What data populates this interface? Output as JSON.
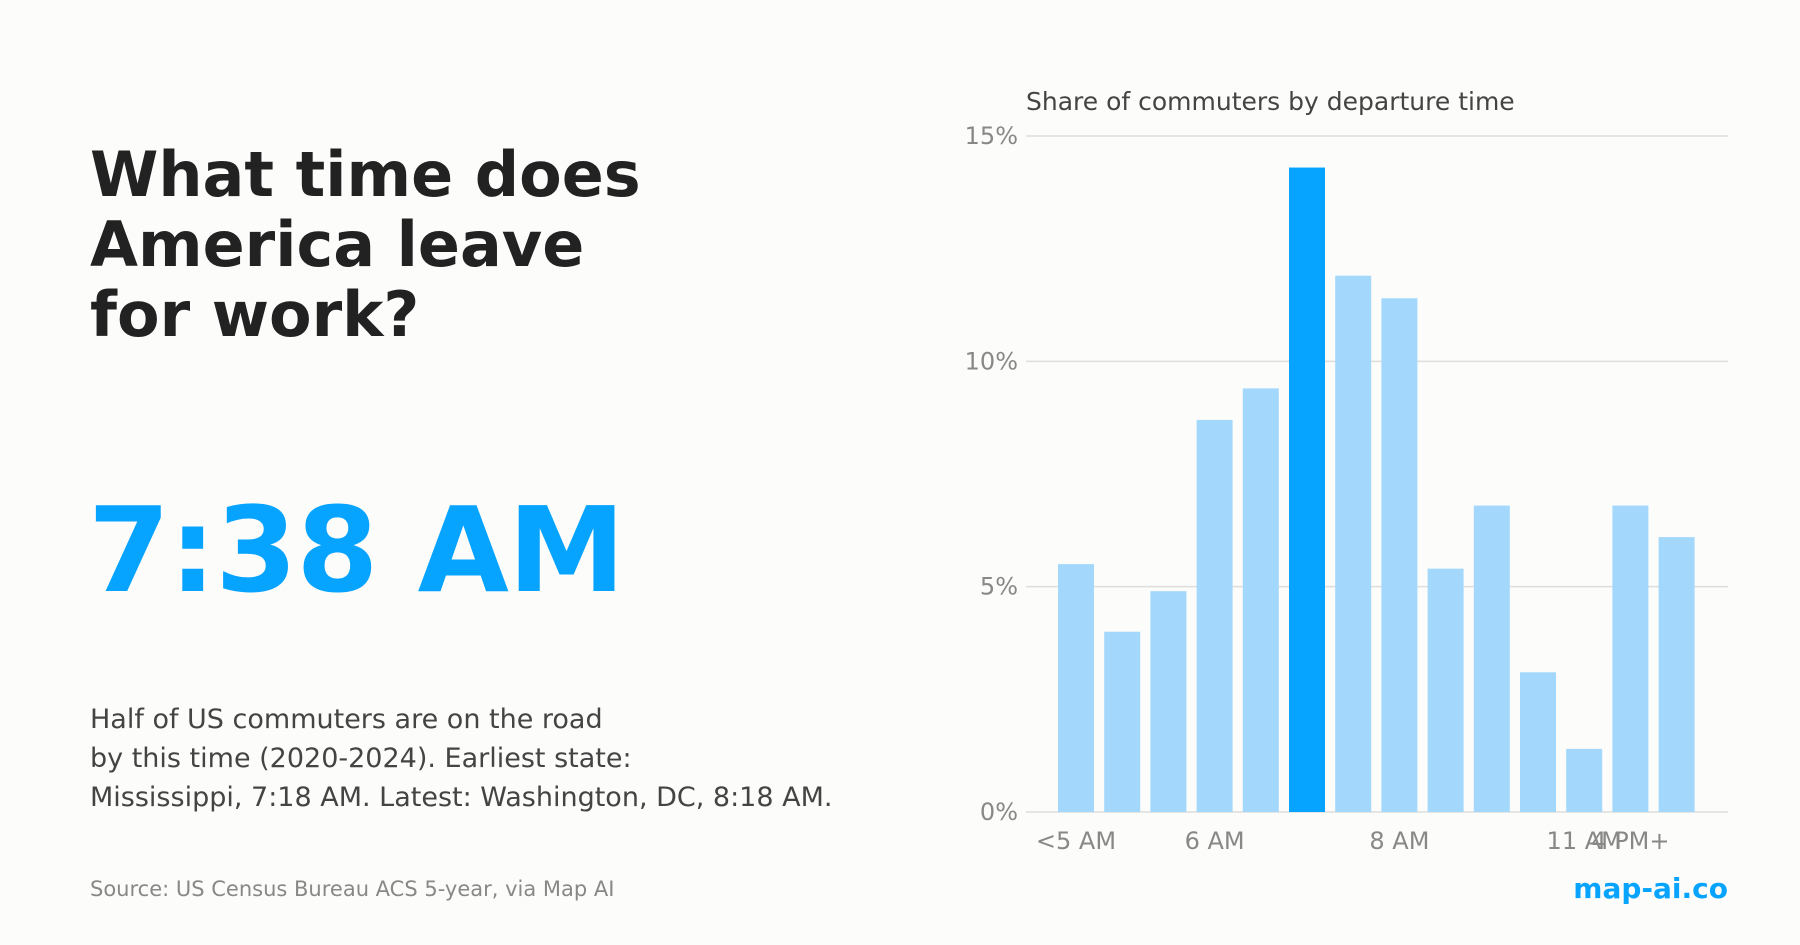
{
  "headline": {
    "lines": [
      "What time does",
      "America leave",
      "for work?"
    ]
  },
  "median_time": "7:38 AM",
  "description": {
    "lines": [
      "Half of US commuters are on the road",
      "by this time (2020-2024). Earliest state:",
      "Mississippi, 7:18 AM. Latest: Washington, DC, 8:18 AM."
    ]
  },
  "source": "Source: US Census Bureau ACS 5-year, via Map AI",
  "brand": "map-ai.co",
  "colors": {
    "accent": "#06a3ff",
    "bar": "#a3d8fc",
    "grid": "#dddddd",
    "axis_text": "#888888"
  },
  "chart_data": {
    "type": "bar",
    "title": "Share of commuters by departure time",
    "xlabel": "",
    "ylabel": "",
    "categories": [
      "<5 AM",
      "",
      "",
      "6 AM",
      "",
      "",
      "",
      "8 AM",
      "",
      "",
      "",
      "11 AM",
      "4 PM+",
      ""
    ],
    "category_tick_labels": [
      "<5 AM",
      "6 AM",
      "8 AM",
      "11 AM",
      "4 PM+"
    ],
    "values": [
      5.5,
      4.0,
      4.9,
      8.7,
      9.4,
      14.3,
      11.9,
      11.4,
      5.4,
      6.8,
      3.1,
      1.4,
      6.8,
      6.1
    ],
    "highlight_index": 5,
    "ylim": [
      0,
      15
    ],
    "yticks": [
      0,
      5,
      10,
      15
    ],
    "ytick_labels": [
      "0%",
      "5%",
      "10%",
      "15%"
    ],
    "grid": true
  }
}
